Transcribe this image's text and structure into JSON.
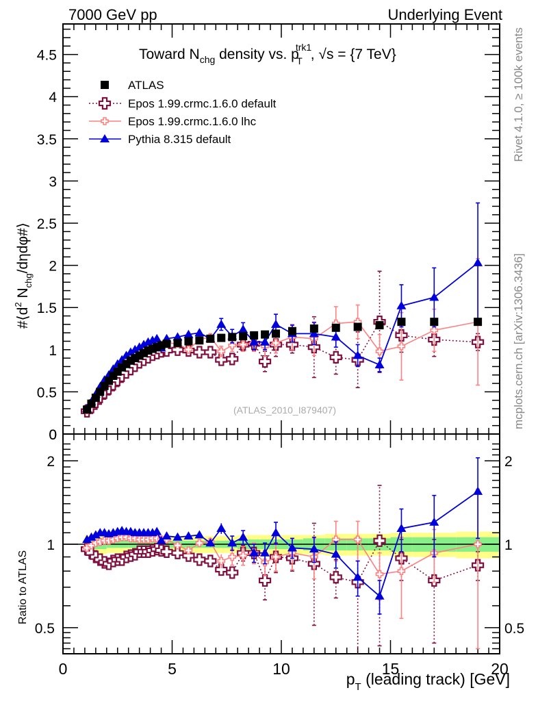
{
  "header": {
    "left": "7000 GeV pp",
    "right": "Underlying Event"
  },
  "side_labels": {
    "rivet": "Rivet 4.1.0, ≥ 100k events",
    "mcplots": "mcplots.cern.ch [arXiv:1306.3436]"
  },
  "watermark": "(ATLAS_2010_I879407)",
  "chart_data": [
    {
      "type": "scatter",
      "panel": "main",
      "title": "Toward N_chg density vs. p_T^trk1, √s = {7 TeV}",
      "title_parts": {
        "a": "Toward N",
        "a_sub": "chg",
        "b": " density vs. p",
        "b_sub": "T",
        "b_sup": "trk1",
        "c": ", √s = {7 TeV}"
      },
      "xlabel": "p_T (leading track) [GeV]",
      "ylabel": "#⟨d² N_chg/dηdφ#⟩",
      "xlim": [
        0,
        20.5
      ],
      "ylim": [
        0,
        4.85
      ],
      "xticks": [
        "0",
        "5",
        "10",
        "15",
        "20"
      ],
      "yticks": [
        "0",
        "0.5",
        "1",
        "1.5",
        "2",
        "2.5",
        "3",
        "3.5",
        "4",
        "4.5"
      ],
      "legend_position": "top-left",
      "legend": [
        "ATLAS",
        "Epos 1.99.crmc.1.6.0 default",
        "Epos 1.99.crmc.1.6.0 lhc",
        "Pythia 8.315 default"
      ],
      "x": [
        1.1,
        1.3,
        1.5,
        1.7,
        1.9,
        2.1,
        2.3,
        2.5,
        2.7,
        2.9,
        3.1,
        3.3,
        3.5,
        3.7,
        3.9,
        4.1,
        4.3,
        4.5,
        4.75,
        5.25,
        5.75,
        6.25,
        6.75,
        7.25,
        7.75,
        8.25,
        8.75,
        9.25,
        9.75,
        10.5,
        11.5,
        12.5,
        13.5,
        14.5,
        15.5,
        17.0,
        19.0
      ],
      "series": [
        {
          "name": "ATLAS",
          "color": "#000000",
          "marker": "square",
          "values": [
            0.29,
            0.36,
            0.43,
            0.5,
            0.57,
            0.63,
            0.69,
            0.74,
            0.79,
            0.83,
            0.87,
            0.9,
            0.93,
            0.96,
            0.99,
            1.01,
            1.03,
            1.05,
            1.07,
            1.08,
            1.1,
            1.11,
            1.13,
            1.14,
            1.15,
            1.16,
            1.17,
            1.18,
            1.19,
            1.22,
            1.25,
            1.26,
            1.27,
            1.29,
            1.33,
            1.33,
            1.33
          ],
          "err": [
            0.01,
            0.01,
            0.01,
            0.01,
            0.01,
            0.01,
            0.01,
            0.01,
            0.01,
            0.01,
            0.01,
            0.01,
            0.01,
            0.01,
            0.01,
            0.01,
            0.01,
            0.01,
            0.01,
            0.01,
            0.01,
            0.01,
            0.01,
            0.01,
            0.01,
            0.01,
            0.01,
            0.02,
            0.02,
            0.02,
            0.02,
            0.02,
            0.02,
            0.03,
            0.03,
            0.03,
            0.04
          ]
        },
        {
          "name": "Epos 1.99.crmc.1.6.0 default",
          "color": "#7f0f3f",
          "marker": "open-cross",
          "line": "dotted",
          "values": [
            0.27,
            0.32,
            0.38,
            0.44,
            0.49,
            0.54,
            0.59,
            0.64,
            0.69,
            0.73,
            0.77,
            0.81,
            0.85,
            0.88,
            0.91,
            0.94,
            0.96,
            0.98,
            0.99,
            1.0,
            0.99,
            0.97,
            0.97,
            0.88,
            0.89,
            1.06,
            1.07,
            0.86,
            1.06,
            1.06,
            1.03,
            0.91,
            0.88,
            1.33,
            1.17,
            1.12,
            1.09
          ],
          "err": [
            0.01,
            0.01,
            0.01,
            0.01,
            0.01,
            0.01,
            0.01,
            0.01,
            0.01,
            0.01,
            0.01,
            0.01,
            0.01,
            0.01,
            0.01,
            0.01,
            0.01,
            0.01,
            0.01,
            0.02,
            0.02,
            0.02,
            0.03,
            0.04,
            0.05,
            0.07,
            0.08,
            0.12,
            0.14,
            0.1,
            0.36,
            0.2,
            0.33,
            0.6,
            0.2,
            0.2,
            0.1
          ]
        },
        {
          "name": "Epos 1.99.crmc.1.6.0 lhc",
          "color": "#ff8080",
          "marker": "small-open-cross",
          "line": "solid",
          "values": [
            0.28,
            0.35,
            0.43,
            0.51,
            0.58,
            0.64,
            0.7,
            0.76,
            0.81,
            0.86,
            0.9,
            0.93,
            0.96,
            0.99,
            1.01,
            1.03,
            1.05,
            1.06,
            1.08,
            1.07,
            1.0,
            1.12,
            1.15,
            0.98,
            1.05,
            1.06,
            1.08,
            1.04,
            1.08,
            1.15,
            1.13,
            1.31,
            1.33,
            0.98,
            1.04,
            1.23,
            1.33
          ],
          "err": [
            0.01,
            0.01,
            0.01,
            0.01,
            0.01,
            0.01,
            0.01,
            0.01,
            0.01,
            0.01,
            0.01,
            0.01,
            0.01,
            0.01,
            0.01,
            0.01,
            0.01,
            0.01,
            0.02,
            0.02,
            0.03,
            0.04,
            0.04,
            0.06,
            0.07,
            0.08,
            0.1,
            0.12,
            0.12,
            0.15,
            0.2,
            0.2,
            0.2,
            0.2,
            0.4,
            0.25,
            0.75
          ]
        },
        {
          "name": "Pythia 8.315 default",
          "color": "#0000dd",
          "marker": "triangle",
          "line": "solid",
          "values": [
            0.3,
            0.38,
            0.47,
            0.56,
            0.64,
            0.7,
            0.77,
            0.83,
            0.88,
            0.93,
            0.97,
            1.0,
            1.03,
            1.06,
            1.09,
            1.11,
            1.13,
            1.02,
            1.13,
            1.15,
            1.18,
            1.2,
            1.13,
            1.3,
            1.16,
            1.24,
            1.09,
            1.09,
            1.3,
            1.19,
            1.19,
            1.15,
            0.93,
            0.82,
            1.52,
            1.62,
            2.03
          ],
          "err": [
            0.01,
            0.01,
            0.01,
            0.01,
            0.01,
            0.01,
            0.01,
            0.01,
            0.01,
            0.01,
            0.01,
            0.01,
            0.01,
            0.01,
            0.01,
            0.01,
            0.01,
            0.01,
            0.02,
            0.03,
            0.03,
            0.04,
            0.04,
            0.07,
            0.08,
            0.08,
            0.09,
            0.09,
            0.12,
            0.1,
            0.13,
            0.12,
            0.13,
            0.08,
            0.25,
            0.35,
            0.71
          ]
        }
      ]
    },
    {
      "type": "scatter",
      "panel": "ratio",
      "ylabel": "Ratio to ATLAS",
      "xlabel": "p_T (leading track) [GeV]",
      "xlim": [
        0,
        20.5
      ],
      "ylim": [
        0.41,
        2.42
      ],
      "yscale": "log",
      "yticks": [
        "0.5",
        "1",
        "2"
      ],
      "xticks": [
        "0",
        "5",
        "10",
        "15",
        "20"
      ],
      "band": {
        "x_edges": [
          1.0,
          2.0,
          3.0,
          4.0,
          5.0,
          6.0,
          7.0,
          8.0,
          9.0,
          10.0,
          11.0,
          12.0,
          13.0,
          14.0,
          15.0,
          16.0,
          18.0,
          20.0
        ],
        "stat_syst": [
          0.08,
          0.07,
          0.07,
          0.07,
          0.07,
          0.07,
          0.07,
          0.08,
          0.08,
          0.08,
          0.08,
          0.09,
          0.09,
          0.09,
          0.1,
          0.1,
          0.11
        ],
        "stat": [
          0.04,
          0.03,
          0.03,
          0.03,
          0.03,
          0.03,
          0.03,
          0.04,
          0.04,
          0.04,
          0.05,
          0.05,
          0.05,
          0.05,
          0.06,
          0.06,
          0.06
        ],
        "colors": {
          "outer": "#ffff88",
          "inner": "#88ee88"
        }
      },
      "series": [
        {
          "name": "Epos 1.99.crmc.1.6.0 default",
          "values": [
            0.96,
            0.93,
            0.9,
            0.88,
            0.86,
            0.85,
            0.87,
            0.88,
            0.88,
            0.9,
            0.91,
            0.92,
            0.94,
            0.94,
            0.94,
            0.95,
            0.96,
            0.95,
            0.94,
            0.93,
            0.91,
            0.88,
            0.87,
            0.81,
            0.79,
            0.93,
            0.93,
            0.74,
            0.9,
            0.89,
            0.85,
            0.76,
            0.73,
            1.03,
            0.89,
            0.74,
            0.84
          ],
          "err": [
            0.01,
            0.01,
            0.01,
            0.01,
            0.01,
            0.01,
            0.01,
            0.01,
            0.01,
            0.01,
            0.01,
            0.01,
            0.01,
            0.01,
            0.01,
            0.01,
            0.01,
            0.01,
            0.02,
            0.02,
            0.02,
            0.02,
            0.03,
            0.04,
            0.04,
            0.06,
            0.07,
            0.11,
            0.11,
            0.09,
            0.34,
            0.12,
            0.33,
            0.6,
            0.15,
            0.3,
            0.1
          ]
        },
        {
          "name": "Epos 1.99.crmc.1.6.0 lhc",
          "values": [
            0.97,
            0.99,
            1.01,
            1.02,
            1.03,
            1.03,
            1.04,
            1.05,
            1.06,
            1.06,
            1.05,
            1.05,
            1.04,
            1.04,
            1.04,
            1.05,
            1.05,
            1.04,
            1.04,
            0.99,
            0.95,
            1.01,
            1.02,
            0.87,
            0.9,
            0.91,
            0.93,
            0.86,
            0.9,
            0.93,
            0.9,
            1.04,
            1.04,
            0.78,
            0.8,
            0.93,
            1.0
          ],
          "err": [
            0.01,
            0.01,
            0.01,
            0.01,
            0.01,
            0.01,
            0.01,
            0.01,
            0.01,
            0.01,
            0.01,
            0.01,
            0.01,
            0.01,
            0.01,
            0.01,
            0.01,
            0.01,
            0.02,
            0.02,
            0.03,
            0.03,
            0.04,
            0.05,
            0.06,
            0.07,
            0.08,
            0.09,
            0.1,
            0.12,
            0.15,
            0.17,
            0.17,
            0.15,
            0.26,
            0.2,
            0.58
          ]
        },
        {
          "name": "Pythia 8.315 default",
          "values": [
            1.04,
            1.06,
            1.08,
            1.1,
            1.1,
            1.09,
            1.1,
            1.11,
            1.12,
            1.11,
            1.11,
            1.1,
            1.1,
            1.1,
            1.1,
            1.1,
            1.11,
            1.03,
            1.07,
            1.06,
            1.07,
            1.08,
            1.01,
            1.14,
            1.01,
            1.06,
            0.93,
            0.93,
            1.1,
            0.97,
            0.96,
            0.92,
            0.76,
            0.65,
            1.14,
            1.2,
            1.55
          ],
          "err": [
            0.01,
            0.01,
            0.01,
            0.01,
            0.01,
            0.01,
            0.01,
            0.01,
            0.01,
            0.01,
            0.01,
            0.01,
            0.01,
            0.01,
            0.01,
            0.01,
            0.01,
            0.01,
            0.02,
            0.02,
            0.02,
            0.03,
            0.03,
            0.05,
            0.06,
            0.06,
            0.07,
            0.08,
            0.1,
            0.08,
            0.1,
            0.1,
            0.11,
            0.09,
            0.2,
            0.3,
            0.5
          ]
        }
      ]
    }
  ]
}
